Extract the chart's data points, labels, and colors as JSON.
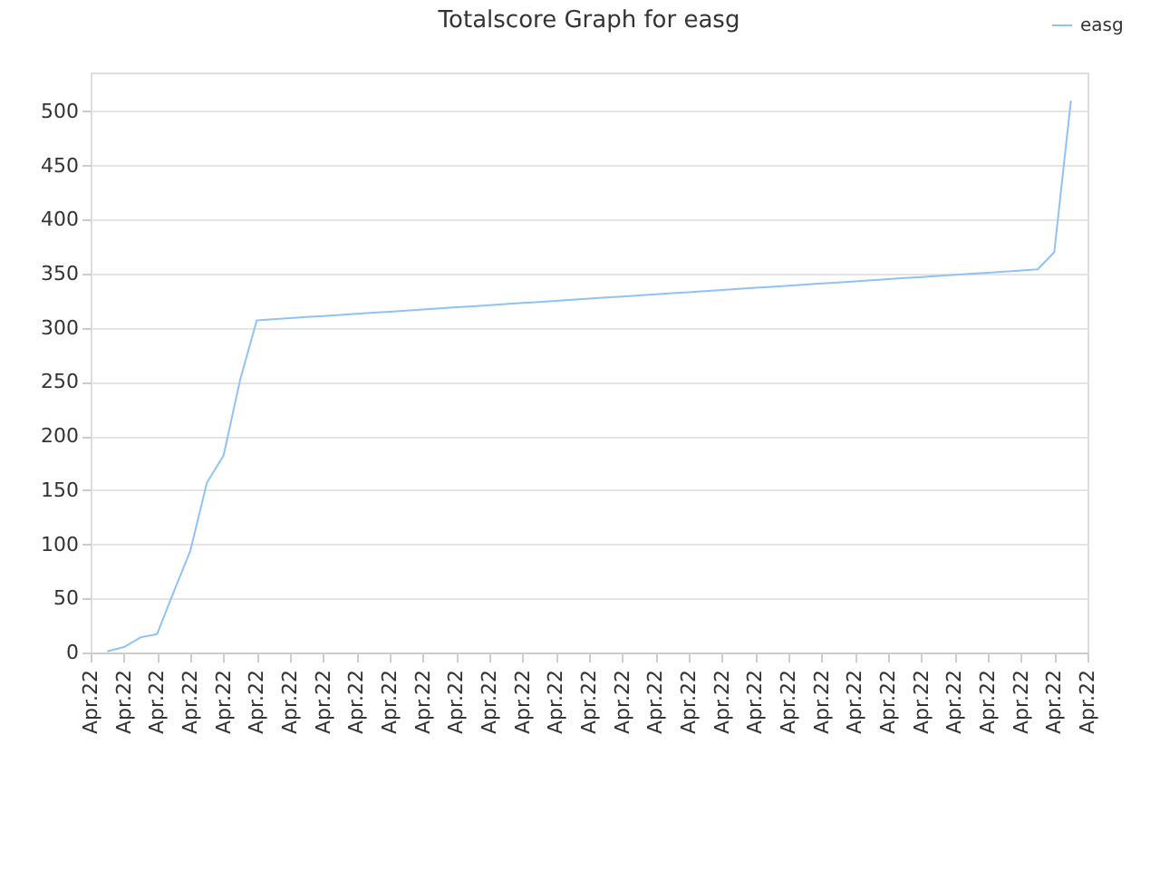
{
  "chart_data": {
    "type": "line",
    "title": "Totalscore Graph for easg",
    "categories": [
      "Apr.22",
      null,
      "Apr.22",
      null,
      "Apr.22",
      null,
      "Apr.22",
      null,
      "Apr.22",
      null,
      "Apr.22",
      null,
      "Apr.22",
      null,
      "Apr.22",
      null,
      "Apr.22",
      null,
      "Apr.22",
      null,
      "Apr.22",
      null,
      "Apr.22",
      null,
      "Apr.22",
      null,
      "Apr.22",
      null,
      "Apr.22",
      null,
      "Apr.22",
      null,
      "Apr.22",
      null,
      "Apr.22",
      null,
      "Apr.22",
      null,
      "Apr.22",
      null,
      "Apr.22",
      null,
      "Apr.22",
      null,
      "Apr.22",
      null,
      "Apr.22",
      null,
      "Apr.22",
      null,
      "Apr.22",
      null,
      "Apr.22",
      null,
      "Apr.22",
      null,
      "Apr.22",
      null,
      "Apr.22",
      null,
      "Apr.22"
    ],
    "series": [
      {
        "name": "easg",
        "color": "#90c3f5",
        "values": [
          null,
          1,
          5,
          14,
          17,
          56,
          94,
          157,
          182,
          252,
          307,
          308,
          309,
          310,
          311,
          312,
          313,
          314,
          315,
          316,
          317,
          318,
          319,
          320,
          321,
          322,
          323,
          324,
          325,
          326,
          327,
          328,
          329,
          330,
          331,
          332,
          333,
          334,
          335,
          336,
          337,
          338,
          339,
          340,
          341,
          342,
          343,
          344,
          345,
          346,
          347,
          348,
          349,
          350,
          351,
          352,
          353,
          354,
          370,
          510,
          null
        ]
      }
    ],
    "ylim": [
      0,
      536
    ],
    "yticks": [
      0,
      50,
      100,
      150,
      200,
      250,
      300,
      350,
      400,
      450,
      500
    ],
    "grid": "y",
    "legend": "top right",
    "marker": "none"
  }
}
